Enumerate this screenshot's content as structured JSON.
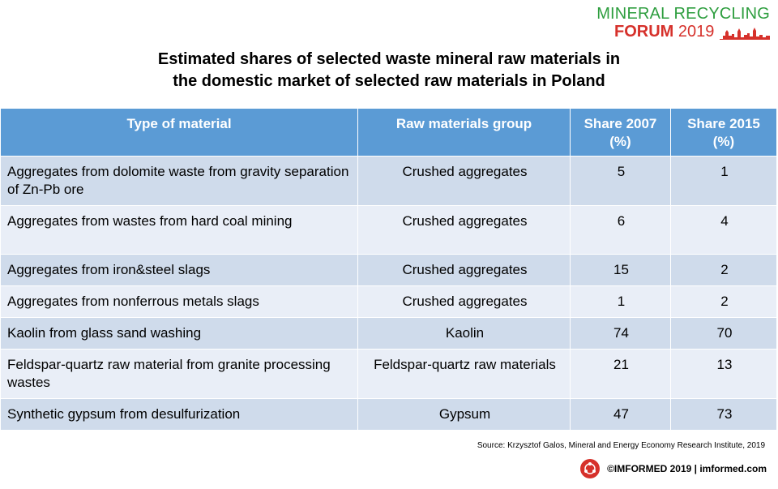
{
  "logo": {
    "line1": "MINERAL RECYCLING",
    "forum": "FORUM",
    "year": "2019"
  },
  "title": {
    "line1": "Estimated shares of selected waste mineral raw materials in",
    "line2": "the domestic market of selected raw materials in Poland"
  },
  "table": {
    "headers": [
      "Type of material",
      "Raw materials group",
      "Share 2007 (%)",
      "Share 2015 (%)"
    ],
    "rows": [
      [
        "Aggregates from dolomite waste from gravity separation of Zn-Pb ore",
        "Crushed aggregates",
        "5",
        "1"
      ],
      [
        "Aggregates from wastes from hard coal mining",
        "Crushed aggregates",
        "6",
        "4"
      ],
      [
        "Aggregates from iron&steel slags",
        "Crushed aggregates",
        "15",
        "2"
      ],
      [
        "Aggregates from nonferrous metals slags",
        "Crushed aggregates",
        "1",
        "2"
      ],
      [
        "Kaolin from glass sand washing",
        "Kaolin",
        "74",
        "70"
      ],
      [
        "Feldspar-quartz raw material from granite processing wastes",
        "Feldspar-quartz raw materials",
        "21",
        "13"
      ],
      [
        "Synthetic gypsum from desulfurization",
        "Gypsum",
        "47",
        "73"
      ]
    ]
  },
  "source": "Source: Krzysztof Galos, Mineral and Energy Economy Research Institute, 2019",
  "footer": "©IMFORMED 2019  | imformed.com",
  "colors": {
    "header_bg": "#5b9bd5",
    "row_odd": "#cfdbeb",
    "row_even": "#e9eef7",
    "brand_green": "#2e9e3f",
    "brand_red": "#d6312b"
  }
}
